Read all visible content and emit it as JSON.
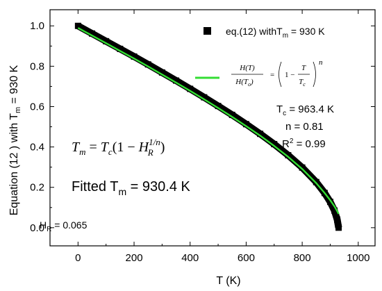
{
  "chart_data": {
    "type": "line",
    "xlabel": "T (K)",
    "ylabel": {
      "main": "Equation (12 ) with T",
      "sub": "m",
      "tail": " = 930 K"
    },
    "xlim": [
      -100,
      1060
    ],
    "ylim": [
      -0.09,
      1.08
    ],
    "xticks": [
      0,
      200,
      400,
      600,
      800,
      1000
    ],
    "yticks": [
      0.0,
      0.2,
      0.4,
      0.6,
      0.8,
      1.0
    ],
    "xtick_labels": [
      "0",
      "200",
      "400",
      "600",
      "800",
      "1000"
    ],
    "ytick_labels": [
      "0.0",
      "0.2",
      "0.4",
      "0.6",
      "0.8",
      "1.0"
    ],
    "grid": false,
    "legend_position": "top-right",
    "series": [
      {
        "name": "eq.(12) withT_m = 930 K",
        "legend": {
          "main": "eq.(12) withT",
          "sub": "m",
          "tail": " = 930 K"
        },
        "style": "thick-black-markers",
        "color": "#000000",
        "x": [
          0,
          50,
          100,
          150,
          200,
          250,
          300,
          350,
          400,
          450,
          500,
          550,
          600,
          650,
          700,
          750,
          800,
          850,
          880,
          900,
          915,
          925,
          930
        ],
        "y": [
          1.0,
          0.962,
          0.924,
          0.886,
          0.848,
          0.809,
          0.769,
          0.729,
          0.688,
          0.646,
          0.603,
          0.559,
          0.513,
          0.465,
          0.414,
          0.359,
          0.298,
          0.226,
          0.172,
          0.128,
          0.085,
          0.04,
          0.0
        ]
      },
      {
        "name": "H(T)/H(T_o) = (1 - T/T_c)^n",
        "style": "green-line",
        "color": "#33dd33",
        "x": [
          0,
          50,
          100,
          150,
          200,
          250,
          300,
          350,
          400,
          450,
          500,
          550,
          600,
          650,
          700,
          750,
          800,
          850,
          880,
          900,
          915,
          925,
          930
        ],
        "y": [
          0.99,
          0.952,
          0.914,
          0.876,
          0.838,
          0.799,
          0.759,
          0.719,
          0.678,
          0.636,
          0.593,
          0.549,
          0.503,
          0.456,
          0.405,
          0.351,
          0.291,
          0.221,
          0.172,
          0.136,
          0.106,
          0.082,
          0.068
        ]
      }
    ],
    "legend_formula": {
      "num_left": "H(T)",
      "den_left": "H(T",
      "den_left_sub": "o",
      "den_left_close": ")",
      "eq": "=",
      "one_minus": "1 −",
      "num_right": "T",
      "den_right": "T",
      "den_right_sub": "c",
      "exponent": "n"
    },
    "annotations": {
      "tc": {
        "main": "T",
        "sub": "c",
        "tail": " = 963.4 K"
      },
      "n": "n = 0.81",
      "r2": {
        "main": "R",
        "sup": "2",
        "tail": " = 0.99"
      },
      "formula": {
        "lhs": "T",
        "lhs_sub": "m",
        "eq": " = ",
        "tc": "T",
        "tc_sub": "c",
        "open": "(1 − ",
        "h": "H",
        "h_sub": "R",
        "h_sup": "1/n",
        "close": ")"
      },
      "fitted": {
        "main": "Fitted T",
        "sub": "m",
        "tail": " = 930.4 K"
      },
      "hr": {
        "main": "H",
        "sub": "R",
        "tail": " = 0.065"
      }
    }
  }
}
